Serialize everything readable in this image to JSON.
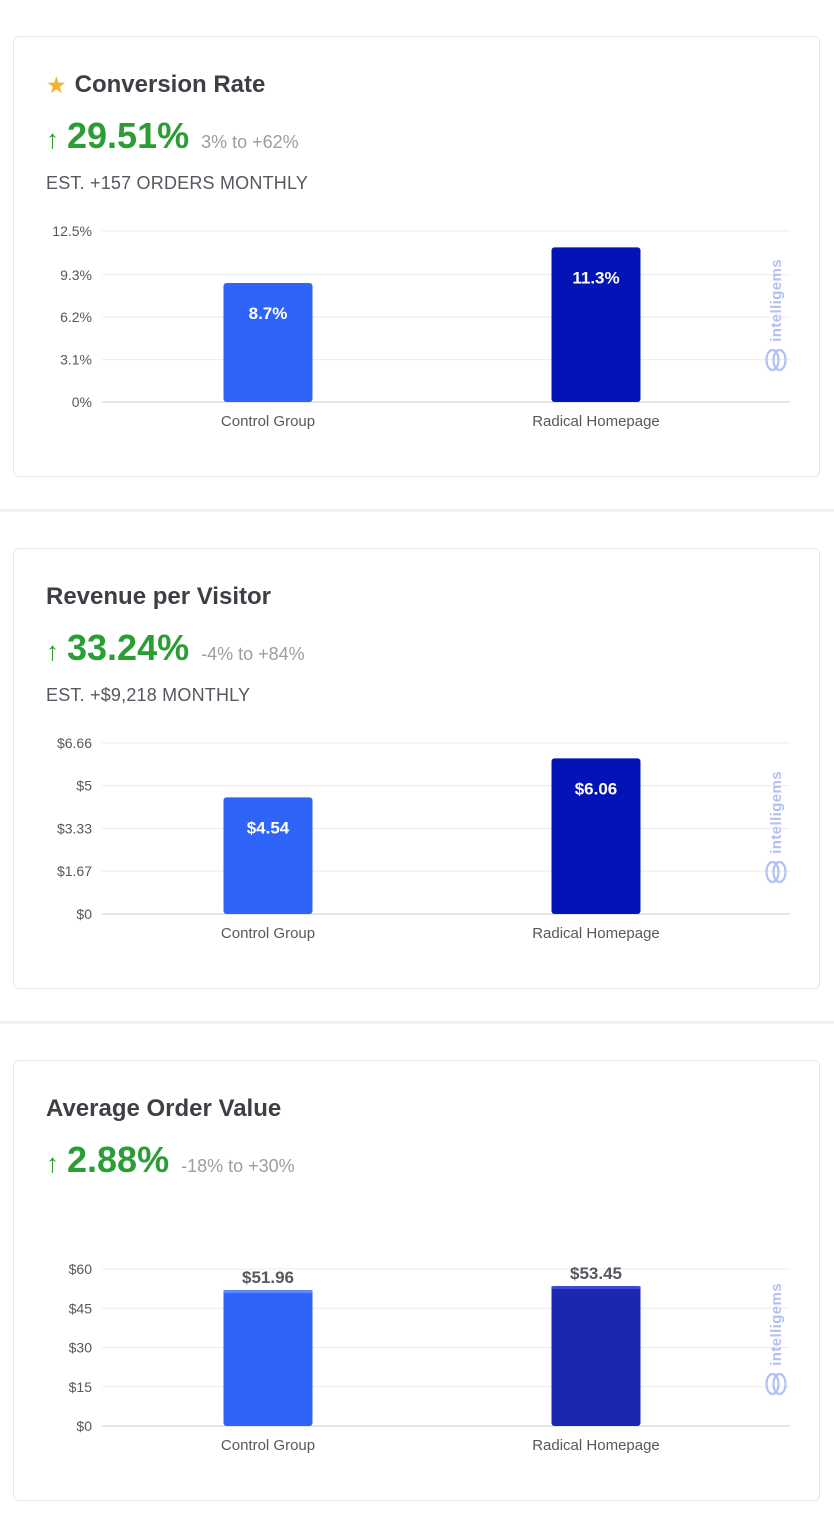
{
  "cards": [
    {
      "title": "Conversion Rate",
      "starred": true,
      "lift": "29.51%",
      "range": "3% to +62%",
      "est": "EST. +157 ORDERS MONTHLY"
    },
    {
      "title": "Revenue per Visitor",
      "starred": false,
      "lift": "33.24%",
      "range": "-4% to +84%",
      "est": "EST. +$9,218 MONTHLY"
    },
    {
      "title": "Average Order Value",
      "starred": false,
      "lift": "2.88%",
      "range": "-18% to +30%",
      "est": ""
    }
  ],
  "icons": {
    "star": "star-icon",
    "arrow": "arrow-up-icon",
    "watermark": "intelligems-logo"
  },
  "watermark_text": "intelligems",
  "colors": {
    "control": "#2e64f8",
    "variant_dark": "#0314b6",
    "variant_aov": "#1a27b0",
    "positive": "#2a9d34",
    "star": "#f5b22b"
  },
  "chart_data": [
    {
      "type": "bar",
      "categories": [
        "Control Group",
        "Radical Homepage"
      ],
      "values": [
        8.7,
        11.3
      ],
      "value_labels": [
        "8.7%",
        "11.3%"
      ],
      "yticks": [
        0,
        3.1,
        6.2,
        9.3,
        12.5
      ],
      "ytick_labels": [
        "0%",
        "3.1%",
        "6.2%",
        "9.3%",
        "12.5%"
      ],
      "ylim": [
        0,
        12.5
      ],
      "label_position": "inside",
      "grid": true
    },
    {
      "type": "bar",
      "categories": [
        "Control Group",
        "Radical Homepage"
      ],
      "values": [
        4.54,
        6.06
      ],
      "value_labels": [
        "$4.54",
        "$6.06"
      ],
      "yticks": [
        0,
        1.67,
        3.33,
        5,
        6.66
      ],
      "ytick_labels": [
        "$0",
        "$1.67",
        "$3.33",
        "$5",
        "$6.66"
      ],
      "ylim": [
        0,
        6.66
      ],
      "label_position": "inside",
      "grid": true
    },
    {
      "type": "bar",
      "categories": [
        "Control Group",
        "Radical Homepage"
      ],
      "values": [
        51.96,
        53.45
      ],
      "value_labels": [
        "$51.96",
        "$53.45"
      ],
      "yticks": [
        0,
        15,
        30,
        45,
        60
      ],
      "ytick_labels": [
        "$0",
        "$15",
        "$30",
        "$45",
        "$60"
      ],
      "ylim": [
        0,
        60
      ],
      "label_position": "above",
      "grid": true
    }
  ]
}
